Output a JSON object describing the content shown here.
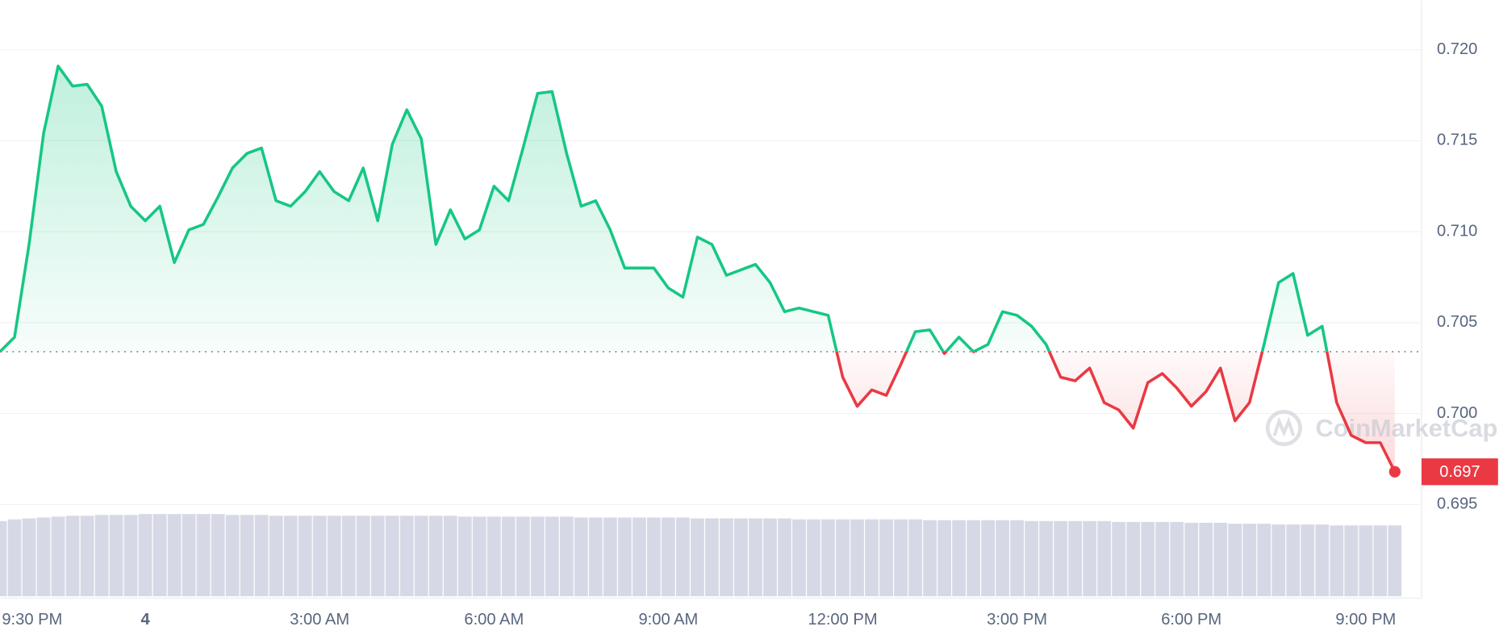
{
  "chart_data": {
    "type": "line",
    "watermark": "CoinMarketCap",
    "price_label": "0.697",
    "categories": [
      "9:30 PM",
      null,
      null,
      null,
      null,
      null,
      null,
      null,
      null,
      null,
      "4",
      null,
      null,
      null,
      null,
      null,
      null,
      null,
      null,
      null,
      null,
      null,
      "3:00 AM",
      null,
      null,
      null,
      null,
      null,
      null,
      null,
      null,
      null,
      null,
      null,
      "6:00 AM",
      null,
      null,
      null,
      null,
      null,
      null,
      null,
      null,
      null,
      null,
      null,
      "9:00 AM",
      null,
      null,
      null,
      null,
      null,
      null,
      null,
      null,
      null,
      null,
      null,
      "12:00 PM",
      null,
      null,
      null,
      null,
      null,
      null,
      null,
      null,
      null,
      null,
      null,
      "3:00 PM",
      null,
      null,
      null,
      null,
      null,
      null,
      null,
      null,
      null,
      null,
      null,
      "6:00 PM",
      null,
      null,
      null,
      null,
      null,
      null,
      null,
      null,
      null,
      null,
      null,
      "9:00 PM",
      null,
      null
    ],
    "values": [
      0.7034,
      0.7042,
      0.7093,
      0.7154,
      0.7191,
      0.718,
      0.7181,
      0.7169,
      0.7133,
      0.7114,
      0.7106,
      0.7114,
      0.7083,
      0.7101,
      0.7104,
      0.7119,
      0.7135,
      0.7143,
      0.7146,
      0.7117,
      0.7114,
      0.7122,
      0.7133,
      0.7122,
      0.7117,
      0.7135,
      0.7106,
      0.7148,
      0.7167,
      0.7151,
      0.7093,
      0.7112,
      0.7096,
      0.7101,
      0.7125,
      0.7117,
      0.7146,
      0.7176,
      0.7177,
      0.7143,
      0.7114,
      0.7117,
      0.7101,
      0.708,
      0.708,
      0.708,
      0.7069,
      0.7064,
      0.7097,
      0.7093,
      0.7076,
      0.7079,
      0.7082,
      0.7072,
      0.7056,
      0.7058,
      0.7056,
      0.7054,
      0.702,
      0.7004,
      0.7013,
      0.701,
      0.7027,
      0.7045,
      0.7046,
      0.7033,
      0.7042,
      0.7034,
      0.7038,
      0.7056,
      0.7054,
      0.7048,
      0.7038,
      0.702,
      0.7018,
      0.7025,
      0.7006,
      0.7002,
      0.6992,
      0.7017,
      0.7022,
      0.7014,
      0.7004,
      0.7012,
      0.7025,
      0.6996,
      0.7006,
      0.7038,
      0.7072,
      0.7077,
      0.7043,
      0.7048,
      0.7006,
      0.6988,
      0.6984,
      0.6984,
      0.6968
    ],
    "volume": [
      86,
      88,
      89,
      90,
      91,
      92,
      92,
      93,
      93,
      93,
      94,
      94,
      94,
      94,
      94,
      94,
      93,
      93,
      93,
      92,
      92,
      92,
      92,
      92,
      92,
      92,
      92,
      92,
      92,
      92,
      92,
      92,
      91,
      91,
      91,
      91,
      91,
      91,
      91,
      91,
      90,
      90,
      90,
      90,
      90,
      90,
      90,
      90,
      89,
      89,
      89,
      89,
      89,
      89,
      89,
      88,
      88,
      88,
      88,
      88,
      88,
      88,
      88,
      88,
      87,
      87,
      87,
      87,
      87,
      87,
      87,
      86,
      86,
      86,
      86,
      86,
      86,
      85,
      85,
      85,
      85,
      85,
      84,
      84,
      84,
      83,
      83,
      83,
      82,
      82,
      82,
      82,
      81,
      81,
      81,
      81,
      81
    ],
    "up_color": "#16c784",
    "down_color": "#ea3943",
    "volume_color": "#cfd2e0",
    "ylim": [
      0.695,
      0.7227
    ],
    "yticks": [
      0.695,
      {
        "value": 0.7,
        "label": "0.700"
      },
      0.705,
      {
        "value": 0.71,
        "label": "0.710"
      },
      0.715,
      {
        "value": 0.72,
        "label": "0.720"
      }
    ],
    "grid": true
  }
}
